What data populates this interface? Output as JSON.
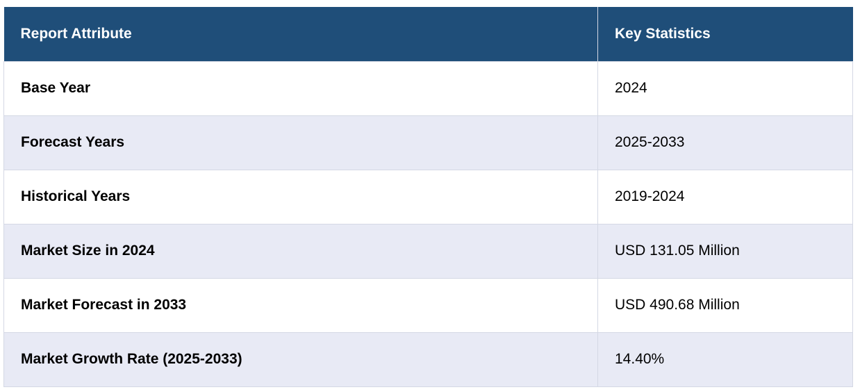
{
  "table": {
    "headers": [
      "Report Attribute",
      "Key Statistics"
    ],
    "rows": [
      [
        "Base Year",
        "2024"
      ],
      [
        "Forecast Years",
        "2025-2033"
      ],
      [
        "Historical Years",
        "2019-2024"
      ],
      [
        "Market Size in 2024",
        "USD 131.05 Million"
      ],
      [
        "Market Forecast in 2033",
        "USD 490.68 Million"
      ],
      [
        "Market Growth Rate (2025-2033)",
        "14.40%"
      ]
    ]
  },
  "colors": {
    "header_bg": "#1f4e79",
    "header_text": "#ffffff",
    "row_alt_bg": "#e8eaf5",
    "border": "#d4d8e4"
  }
}
